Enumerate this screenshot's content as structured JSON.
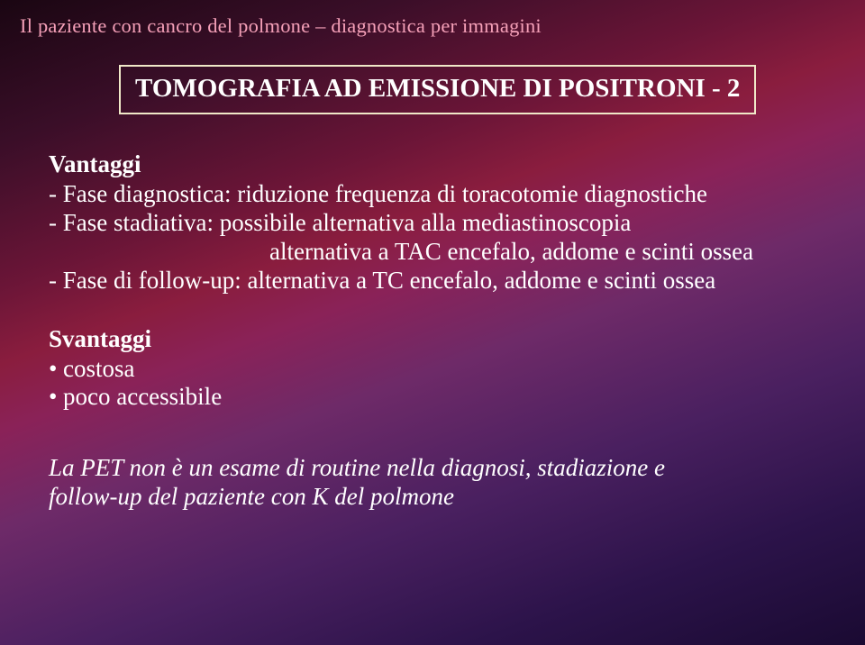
{
  "header": "Il paziente con cancro del polmone – diagnostica per immagini",
  "title": "TOMOGRAFIA AD EMISSIONE DI POSITRONI - 2",
  "vantaggi": {
    "label": "Vantaggi",
    "lines": [
      "- Fase diagnostica: riduzione frequenza di toracotomie diagnostiche",
      "- Fase stadiativa: possibile alternativa alla mediastinoscopia",
      "alternativa a TAC encefalo, addome e scinti ossea",
      "- Fase di follow-up: alternativa a TC encefalo, addome e scinti ossea"
    ]
  },
  "svantaggi": {
    "label": "Svantaggi",
    "bullets": [
      "costosa",
      "poco accessibile"
    ]
  },
  "footnote": {
    "line1": "La PET non è un esame di routine nella diagnosi, stadiazione e",
    "line2": "follow-up del paziente con K del polmone"
  },
  "colors": {
    "header_text": "#f5a0b8",
    "title_border": "#f0e8c8",
    "body_text": "#ffffff",
    "title_fontsize_pt": 22,
    "body_fontsize_pt": 20,
    "header_fontsize_pt": 17
  }
}
